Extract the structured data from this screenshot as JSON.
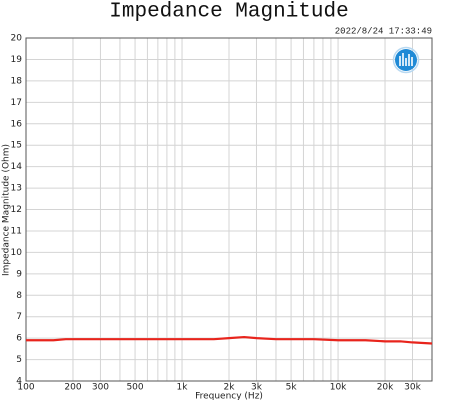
{
  "chart_data": {
    "type": "line",
    "title": "Impedance Magnitude",
    "subtitle": "2022/8/24 17:33:49",
    "x_label": "Frequency (Hz)",
    "y_label": "Impedance Magnitude (Ohm)",
    "x_scale": "log",
    "xlim": [
      100,
      40000
    ],
    "ylim": [
      4,
      20
    ],
    "xticks": [
      100,
      200,
      300,
      500,
      {
        "value": 1000,
        "label": "1k"
      },
      {
        "value": 2000,
        "label": "2k"
      },
      {
        "value": 3000,
        "label": "3k"
      },
      {
        "value": 5000,
        "label": "5k"
      },
      {
        "value": 10000,
        "label": "10k"
      },
      {
        "value": 20000,
        "label": "20k"
      },
      {
        "value": 30000,
        "label": "30k"
      }
    ],
    "minor_xticks": [
      400,
      600,
      700,
      800,
      900,
      4000,
      6000,
      7000,
      8000,
      9000,
      40000
    ],
    "yticks": [
      4,
      5,
      6,
      7,
      8,
      9,
      10,
      11,
      12,
      13,
      14,
      15,
      16,
      17,
      18,
      19,
      20
    ],
    "grid": true,
    "series": [
      {
        "name": "Impedance",
        "color": "#e8241c",
        "x": [
          100,
          150,
          180,
          300,
          500,
          1000,
          1600,
          2000,
          2500,
          3000,
          4000,
          5000,
          7000,
          10000,
          15000,
          20000,
          25000,
          30000,
          40000
        ],
        "values": [
          5.9,
          5.9,
          5.95,
          5.95,
          5.95,
          5.95,
          5.95,
          6.0,
          6.05,
          6.0,
          5.95,
          5.95,
          5.95,
          5.9,
          5.9,
          5.85,
          5.85,
          5.8,
          5.75
        ]
      }
    ]
  }
}
